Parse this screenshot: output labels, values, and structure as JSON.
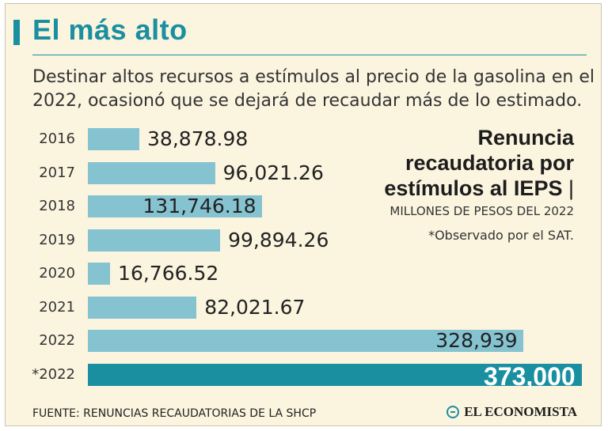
{
  "header": {
    "title": "El más alto",
    "subtitle": "Destinar altos recursos a estímulos al precio de la gasolina en el 2022, ocasionó que se dejará de recaudar más de lo estimado."
  },
  "side": {
    "title_line1": "Renuncia",
    "title_line2": "recaudatoria por",
    "title_line3": "estímulos al IEPS",
    "title_sep": "|",
    "units": "MILLONES DE PESOS DEL 2022",
    "note": "*Observado por el SAT."
  },
  "footer": {
    "source": "FUENTE: RENUNCIAS RECAUDATORIAS DE LA SHCP",
    "logo": "EL ECONOMISTA"
  },
  "colors": {
    "accent": "#1a8fa0",
    "bar": "#85c3d1",
    "background": "#fbf4df"
  },
  "chart_data": {
    "type": "bar",
    "orientation": "horizontal",
    "categories": [
      "2016",
      "2017",
      "2018",
      "2019",
      "2020",
      "2021",
      "2022",
      "*2022"
    ],
    "values": [
      38878.98,
      96021.26,
      131746.18,
      99894.26,
      16766.52,
      82021.67,
      328939,
      373000
    ],
    "value_labels": [
      "38,878.98",
      "96,021.26",
      "131,746.18",
      "99,894.26",
      "16,766.52",
      "82,021.67",
      "328,939",
      "373,000"
    ],
    "highlight_index": 7,
    "xlim": [
      0,
      373000
    ]
  }
}
